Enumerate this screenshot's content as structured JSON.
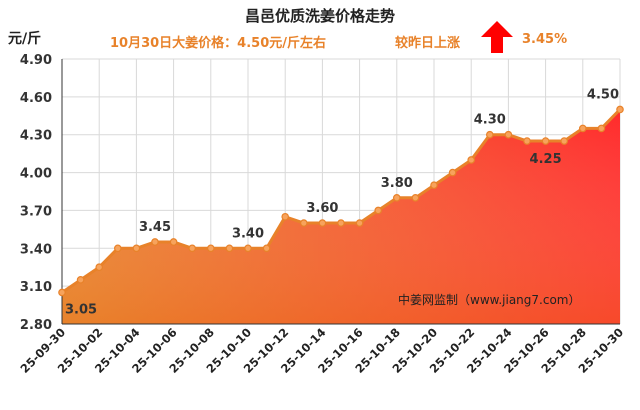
{
  "header": {
    "title": "昌邑优质洗姜价格走势",
    "unit": "元/斤",
    "subtitle": "10月30日大姜价格：4.50元/斤左右",
    "compare_label": "较昨日上涨",
    "change_value": "3.45%",
    "arrow_icon": "up-arrow-icon",
    "arrow_color": "#ff0000"
  },
  "watermark": "中姜网监制（www.jiang7.com）",
  "chart_data": {
    "type": "area",
    "title": "昌邑优质洗姜价格走势",
    "ylabel": "元/斤",
    "xlabel": "",
    "ylim": [
      2.8,
      4.9
    ],
    "yticks": [
      "2.80",
      "3.10",
      "3.40",
      "3.70",
      "4.00",
      "4.30",
      "4.60",
      "4.90"
    ],
    "xtick_labels": [
      "25-09-30",
      "25-10-02",
      "25-10-04",
      "25-10-06",
      "25-10-08",
      "25-10-10",
      "25-10-12",
      "25-10-14",
      "25-10-16",
      "25-10-18",
      "25-10-20",
      "25-10-22",
      "25-10-24",
      "25-10-26",
      "25-10-28",
      "25-10-30"
    ],
    "x": [
      "25-09-30",
      "25-10-01",
      "25-10-02",
      "25-10-03",
      "25-10-04",
      "25-10-05",
      "25-10-06",
      "25-10-07",
      "25-10-08",
      "25-10-09",
      "25-10-10",
      "25-10-11",
      "25-10-12",
      "25-10-13",
      "25-10-14",
      "25-10-15",
      "25-10-16",
      "25-10-17",
      "25-10-18",
      "25-10-19",
      "25-10-20",
      "25-10-21",
      "25-10-22",
      "25-10-23",
      "25-10-24",
      "25-10-25",
      "25-10-26",
      "25-10-27",
      "25-10-28",
      "25-10-29",
      "25-10-30"
    ],
    "values": [
      3.05,
      3.15,
      3.25,
      3.4,
      3.4,
      3.45,
      3.45,
      3.4,
      3.4,
      3.4,
      3.4,
      3.4,
      3.65,
      3.6,
      3.6,
      3.6,
      3.6,
      3.7,
      3.8,
      3.8,
      3.9,
      4.0,
      4.1,
      4.3,
      4.3,
      4.25,
      4.25,
      4.25,
      4.35,
      4.35,
      4.5
    ],
    "data_labels": [
      {
        "index": 0,
        "text": "3.05"
      },
      {
        "index": 5,
        "text": "3.45"
      },
      {
        "index": 10,
        "text": "3.40"
      },
      {
        "index": 14,
        "text": "3.60"
      },
      {
        "index": 18,
        "text": "3.80"
      },
      {
        "index": 23,
        "text": "4.30"
      },
      {
        "index": 26,
        "text": "4.25"
      },
      {
        "index": 30,
        "text": "4.50"
      }
    ],
    "grid": true,
    "colors": {
      "line": "#e8822a",
      "area_top": "#ff2a2a",
      "area_bottom": "#e8822a",
      "grid": "#d9d9d9"
    }
  }
}
